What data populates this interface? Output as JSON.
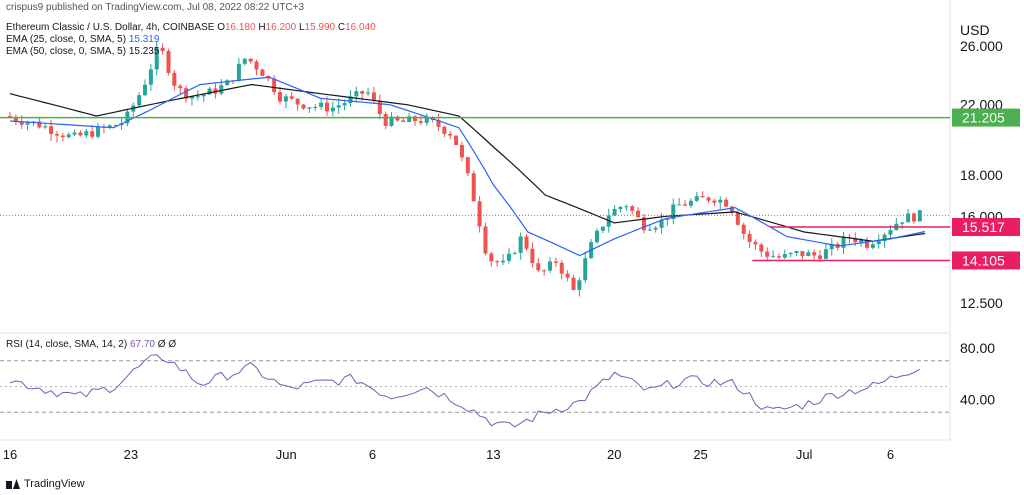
{
  "header": {
    "published": "crispus9 published on TradingView.com, Jul 08, 2022 08:22 UTC+3",
    "symbol": "Ethereum Classic / U.S. Dollar, 4h, COINBASE",
    "ohlc": {
      "o_label": "O",
      "o": "16.180",
      "h_label": "H",
      "h": "16.200",
      "l_label": "L",
      "l": "15.990",
      "c_label": "C",
      "c": "16.040"
    },
    "ema25_label": "EMA (25, close, 0, SMA, 5)",
    "ema25_value": "15.319",
    "ema50_label": "EMA (50, close, 0, SMA, 5)",
    "ema50_value": "15.235",
    "rsi_label": "RSI (14, close, SMA, 14, 2)",
    "rsi_value": "67.70",
    "rsi_extra": "Ø  Ø",
    "currency": "USD"
  },
  "footer": {
    "brand": "TradingView"
  },
  "colors": {
    "up": "#26a69a",
    "down": "#ef5350",
    "ema25": "#2962ff",
    "ema50": "#131722",
    "support_green": "#4caf50",
    "level_red": "#e91e63",
    "rsi": "#7e57c2",
    "grid": "#f0f3fa"
  },
  "chart_data": {
    "type": "candlestick",
    "x_ticks": [
      "16",
      "23",
      "Jun",
      "6",
      "13",
      "20",
      "25",
      "Jul",
      "6"
    ],
    "price_axis": {
      "scale": "log",
      "ticks": [
        "26.000",
        "22.000",
        "18.000",
        "16.000",
        "12.500"
      ],
      "range": [
        11.5,
        28.5
      ]
    },
    "rsi_axis": {
      "ticks": [
        "80.00",
        "40.00"
      ],
      "range": [
        10,
        90
      ],
      "band": [
        70,
        30
      ],
      "mid": 50
    },
    "levels": [
      {
        "value": 21.205,
        "label": "21.205",
        "color": "#4caf50",
        "span": "full"
      },
      {
        "value": 15.517,
        "label": "15.517",
        "color": "#e91e63",
        "span": "from Jun 29"
      },
      {
        "value": 14.105,
        "label": "14.105",
        "color": "#e91e63",
        "span": "from Jun 28"
      }
    ],
    "last_price": 16.04,
    "price_path": [
      [
        "May 16",
        21.3
      ],
      [
        "May 18",
        20.8
      ],
      [
        "May 20",
        20.0
      ],
      [
        "May 21",
        20.3
      ],
      [
        "May 22",
        20.6
      ],
      [
        "May 23",
        21.0
      ],
      [
        "May 24",
        23.0
      ],
      [
        "May 25",
        26.0
      ],
      [
        "May 26",
        23.0
      ],
      [
        "May 27",
        22.5
      ],
      [
        "May 28",
        22.8
      ],
      [
        "May 29",
        23.4
      ],
      [
        "May 30",
        25.2
      ],
      [
        "May 31",
        24.1
      ],
      [
        "Jun 1",
        22.5
      ],
      [
        "Jun 2",
        22.1
      ],
      [
        "Jun 3",
        21.9
      ],
      [
        "Jun 4",
        21.8
      ],
      [
        "Jun 5",
        22.3
      ],
      [
        "Jun 6",
        22.9
      ],
      [
        "Jun 7",
        21.0
      ],
      [
        "Jun 8",
        20.9
      ],
      [
        "Jun 9",
        21.1
      ],
      [
        "Jun 10",
        20.8
      ],
      [
        "Jun 11",
        20.2
      ],
      [
        "Jun 12",
        17.5
      ],
      [
        "Jun 13",
        14.2
      ],
      [
        "Jun 14",
        13.9
      ],
      [
        "Jun 15",
        15.1
      ],
      [
        "Jun 16",
        13.5
      ],
      [
        "Jun 17",
        14.1
      ],
      [
        "Jun 18",
        12.9
      ],
      [
        "Jun 19",
        14.7
      ],
      [
        "Jun 20",
        16.1
      ],
      [
        "Jun 21",
        16.6
      ],
      [
        "Jun 22",
        15.6
      ],
      [
        "Jun 23",
        15.7
      ],
      [
        "Jun 24",
        16.5
      ],
      [
        "Jun 25",
        16.7
      ],
      [
        "Jun 26",
        16.9
      ],
      [
        "Jun 27",
        16.6
      ],
      [
        "Jun 28",
        15.0
      ],
      [
        "Jun 29",
        14.4
      ],
      [
        "Jun 30",
        14.2
      ],
      [
        "Jul 1",
        14.4
      ],
      [
        "Jul 2",
        14.3
      ],
      [
        "Jul 3",
        14.6
      ],
      [
        "Jul 4",
        15.1
      ],
      [
        "Jul 5",
        14.8
      ],
      [
        "Jul 6",
        15.3
      ],
      [
        "Jul 7",
        15.9
      ],
      [
        "Jul 8",
        16.04
      ]
    ],
    "ema25_path": [
      [
        "May 16",
        21.0
      ],
      [
        "May 22",
        20.6
      ],
      [
        "May 24",
        21.6
      ],
      [
        "May 27",
        23.3
      ],
      [
        "May 31",
        23.8
      ],
      [
        "Jun 3",
        22.4
      ],
      [
        "Jun 7",
        22.0
      ],
      [
        "Jun 11",
        20.6
      ],
      [
        "Jun 13",
        17.5
      ],
      [
        "Jun 15",
        15.3
      ],
      [
        "Jun 18",
        14.3
      ],
      [
        "Jun 20",
        15.0
      ],
      [
        "Jun 23",
        15.9
      ],
      [
        "Jun 27",
        16.4
      ],
      [
        "Jun 30",
        15.1
      ],
      [
        "Jul 3",
        14.7
      ],
      [
        "Jul 6",
        15.0
      ],
      [
        "Jul 8",
        15.319
      ]
    ],
    "ema50_path": [
      [
        "May 16",
        22.7
      ],
      [
        "May 21",
        21.3
      ],
      [
        "May 25",
        22.2
      ],
      [
        "May 30",
        23.3
      ],
      [
        "Jun 3",
        22.7
      ],
      [
        "Jun 8",
        22.0
      ],
      [
        "Jun 11",
        21.3
      ],
      [
        "Jun 13",
        19.5
      ],
      [
        "Jun 16",
        17.0
      ],
      [
        "Jun 20",
        15.7
      ],
      [
        "Jun 23",
        16.0
      ],
      [
        "Jun 27",
        16.2
      ],
      [
        "Jul 1",
        15.3
      ],
      [
        "Jul 5",
        14.9
      ],
      [
        "Jul 8",
        15.235
      ]
    ],
    "rsi_path": [
      [
        "May 16",
        55
      ],
      [
        "May 18",
        48
      ],
      [
        "May 20",
        42
      ],
      [
        "May 22",
        50
      ],
      [
        "May 24",
        70
      ],
      [
        "May 25",
        73
      ],
      [
        "May 27",
        52
      ],
      [
        "May 30",
        65
      ],
      [
        "Jun 1",
        48
      ],
      [
        "Jun 3",
        53
      ],
      [
        "Jun 5",
        56
      ],
      [
        "Jun 7",
        42
      ],
      [
        "Jun 9",
        50
      ],
      [
        "Jun 11",
        38
      ],
      [
        "Jun 13",
        22
      ],
      [
        "Jun 14",
        18
      ],
      [
        "Jun 16",
        30
      ],
      [
        "Jun 18",
        38
      ],
      [
        "Jun 20",
        60
      ],
      [
        "Jun 22",
        46
      ],
      [
        "Jun 24",
        55
      ],
      [
        "Jun 27",
        52
      ],
      [
        "Jun 29",
        30
      ],
      [
        "Jul 1",
        36
      ],
      [
        "Jul 3",
        45
      ],
      [
        "Jul 5",
        50
      ],
      [
        "Jul 6",
        56
      ],
      [
        "Jul 8",
        67.7
      ]
    ]
  }
}
